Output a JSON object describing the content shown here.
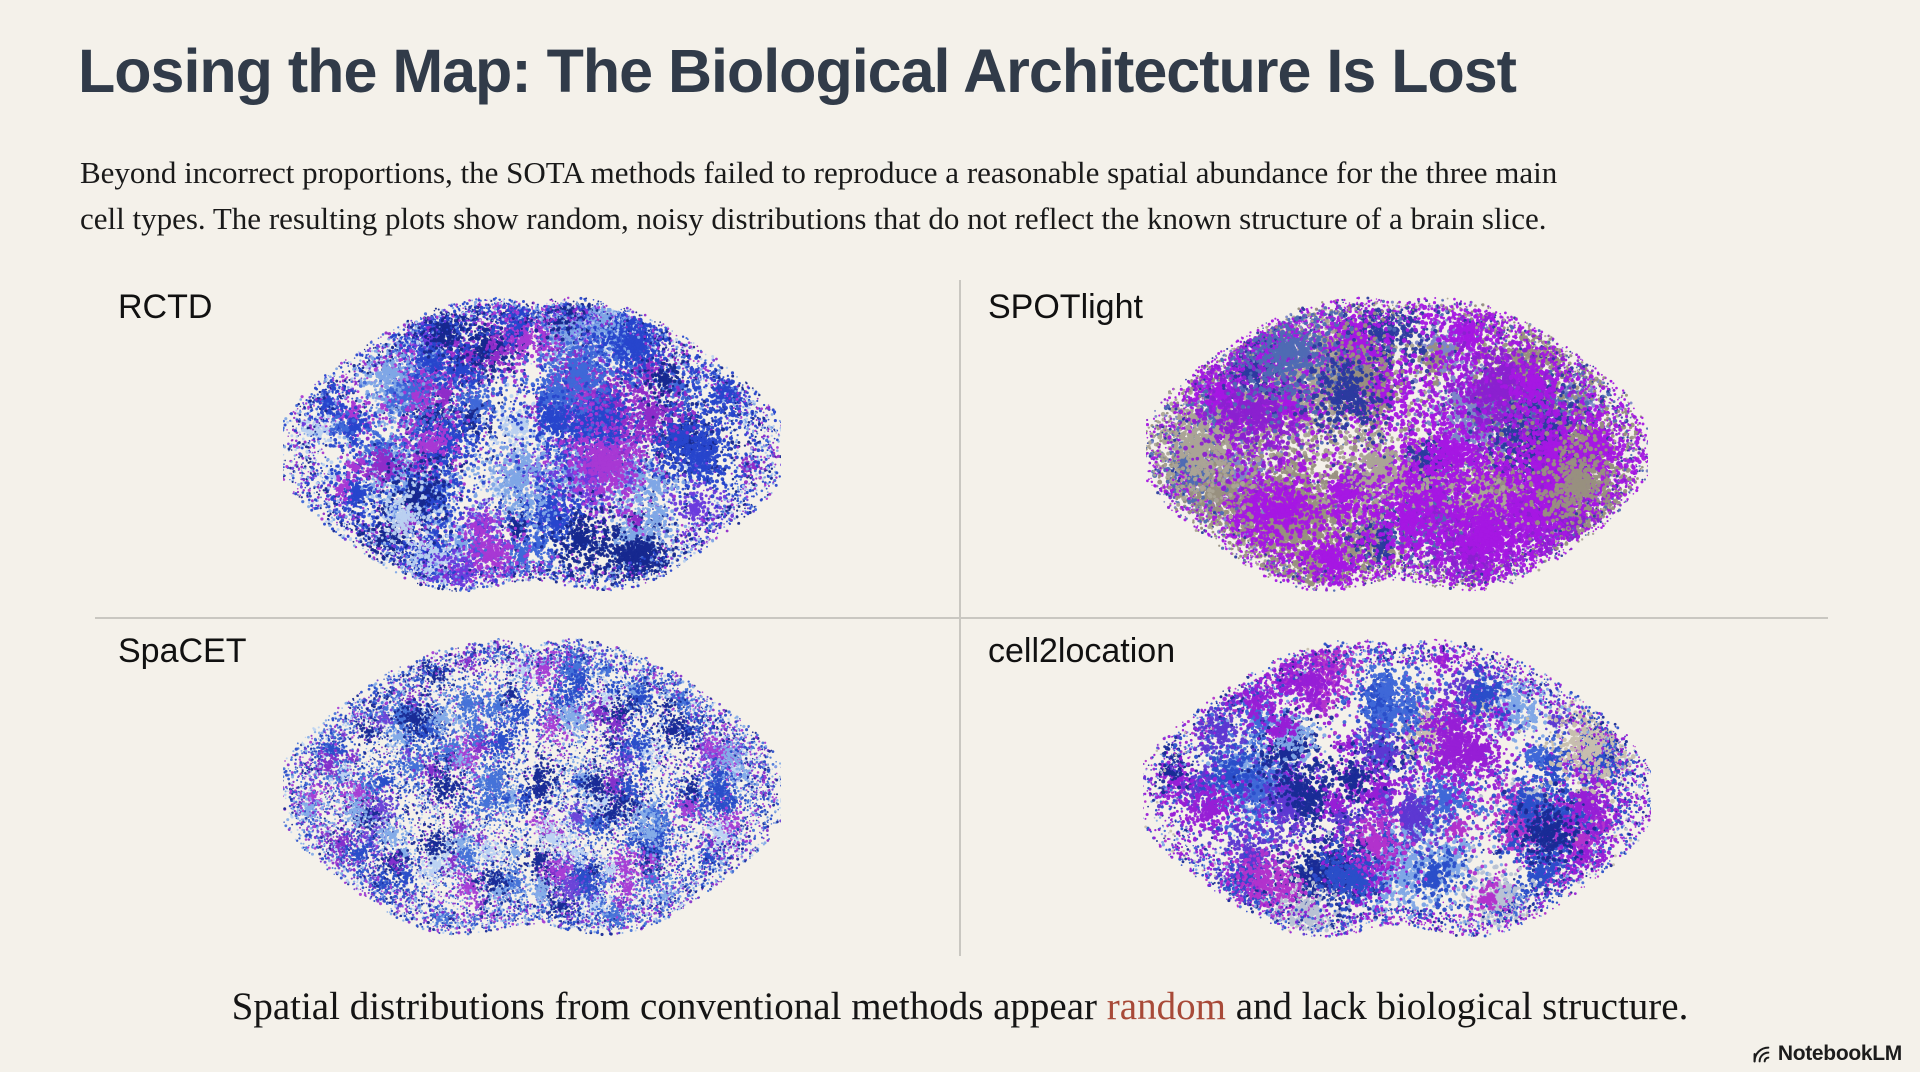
{
  "slide": {
    "title": "Losing the Map: The Biological Architecture Is Lost",
    "subtitle_line1": "Beyond incorrect proportions, the SOTA methods failed to reproduce a reasonable spatial abundance for the three main",
    "subtitle_line2": "cell types. The resulting plots show random, noisy distributions that do not reflect the known structure of a brain slice.",
    "caption_before": "Spatial distributions from conventional methods appear ",
    "caption_highlight": "random",
    "caption_after": " and lack biological structure.",
    "watermark": "NotebookLM",
    "colors": {
      "background": "#f4f1ea",
      "title": "#313b49",
      "body_text": "#1a1a1a",
      "divider": "#c9c7c1",
      "caption_highlight": "#a84a38",
      "watermark": "#1c1c1c"
    }
  },
  "chart_data": {
    "type": "scatter",
    "layout": "2x2-grid",
    "title": "Losing the Map: The Biological Architecture Is Lost",
    "note": "Four coronal mouse-brain spatial cell-type maps; dots form random noisy patches with no biological structure (the slide's point). Panels are generated from the parameters below.",
    "panels": [
      {
        "label": "RCTD",
        "position": "top-left",
        "seed": 11,
        "clusters": 115,
        "sigma": [
          8,
          30
        ],
        "density": 0.55,
        "dotR": [
          1.0,
          2.1
        ],
        "fillDots": 3500,
        "fillR": [
          0.8,
          1.5
        ],
        "edgeDots": 2800,
        "midline": 0.018,
        "shape": {
          "cx": 0.5,
          "cy": 0.5,
          "rx": 0.45,
          "ry": 0.46,
          "lobe2": 0.05,
          "lobe4": 0.035,
          "lobe6": 0.015,
          "bottomNotch": 0.16,
          "bottomNotchW": 0.3,
          "topNotch": 0.05,
          "topNotchW": 0.12
        },
        "palette": [
          {
            "color": "#16288f",
            "w": 2.6
          },
          {
            "color": "#2746cc",
            "w": 3.0
          },
          {
            "color": "#3f68d8",
            "w": 1.6
          },
          {
            "color": "#7fa6e6",
            "w": 2.2
          },
          {
            "color": "#b9d0f0",
            "w": 1.6
          },
          {
            "color": "#8f2cc9",
            "w": 2.0
          },
          {
            "color": "#a838d4",
            "w": 1.4
          },
          {
            "color": "#6b3bdd",
            "w": 1.2
          }
        ]
      },
      {
        "label": "SPOTlight",
        "position": "top-right",
        "seed": 27,
        "clusters": 70,
        "sigma": [
          14,
          45
        ],
        "density": 0.45,
        "dotR": [
          1.3,
          2.6
        ],
        "fillDots": 2500,
        "fillR": [
          0.9,
          1.7
        ],
        "edgeDots": 2500,
        "midline": 0.015,
        "shape": {
          "cx": 0.5,
          "cy": 0.5,
          "rx": 0.45,
          "ry": 0.46,
          "lobe2": 0.05,
          "lobe4": 0.035,
          "lobe6": 0.015,
          "bottomNotch": 0.16,
          "bottomNotchW": 0.3,
          "topNotch": 0.05,
          "topNotchW": 0.12
        },
        "palette": [
          {
            "color": "#a517e3",
            "w": 6.5
          },
          {
            "color": "#8b21d0",
            "w": 1.5
          },
          {
            "color": "#98907f",
            "w": 2.0
          },
          {
            "color": "#aaa496",
            "w": 1.2
          },
          {
            "color": "#4f6ab4",
            "w": 1.2
          },
          {
            "color": "#2b3a9f",
            "w": 1.4
          },
          {
            "color": "#7c86c8",
            "w": 0.8
          }
        ]
      },
      {
        "label": "SpaCET",
        "position": "bottom-left",
        "seed": 33,
        "clusters": 170,
        "sigma": [
          5,
          16
        ],
        "density": 0.8,
        "dotR": [
          0.9,
          1.6
        ],
        "fillDots": 9000,
        "fillR": [
          0.7,
          1.3
        ],
        "edgeDots": 3000,
        "midline": 0.018,
        "shape": {
          "cx": 0.5,
          "cy": 0.5,
          "rx": 0.45,
          "ry": 0.46,
          "lobe2": 0.05,
          "lobe4": 0.035,
          "lobe6": 0.015,
          "bottomNotch": 0.16,
          "bottomNotchW": 0.3,
          "topNotch": 0.05,
          "topNotchW": 0.12
        },
        "palette": [
          {
            "color": "#2a4ec9",
            "w": 3.0
          },
          {
            "color": "#4673d8",
            "w": 2.2
          },
          {
            "color": "#85ace8",
            "w": 2.0
          },
          {
            "color": "#bcd3f2",
            "w": 1.4
          },
          {
            "color": "#192b96",
            "w": 1.8
          },
          {
            "color": "#8432cb",
            "w": 2.0
          },
          {
            "color": "#a63fd6",
            "w": 1.3
          },
          {
            "color": "#6d45d8",
            "w": 0.9
          }
        ]
      },
      {
        "label": "cell2location",
        "position": "bottom-right",
        "seed": 44,
        "clusters": 95,
        "sigma": [
          7,
          28
        ],
        "density": 0.55,
        "dotR": [
          1.1,
          2.4
        ],
        "fillDots": 1500,
        "fillR": [
          0.8,
          1.4
        ],
        "edgeDots": 2600,
        "midline": 0.02,
        "shape": {
          "cx": 0.5,
          "cy": 0.5,
          "rx": 0.45,
          "ry": 0.46,
          "lobe2": 0.05,
          "lobe4": 0.035,
          "lobe6": 0.015,
          "bottomNotch": 0.16,
          "bottomNotchW": 0.3,
          "topNotch": 0.05,
          "topNotchW": 0.12
        },
        "palette": [
          {
            "color": "#971fd6",
            "w": 3.4
          },
          {
            "color": "#2a4ec9",
            "w": 2.4
          },
          {
            "color": "#b233cc",
            "w": 1.5
          },
          {
            "color": "#192b96",
            "w": 1.6
          },
          {
            "color": "#5d38d2",
            "w": 1.1
          },
          {
            "color": "#7fa6e6",
            "w": 1.0
          },
          {
            "color": "#3f68d8",
            "w": 1.0
          },
          {
            "color": "#c7bfae",
            "w": 0.35
          },
          {
            "color": "#b8c2d4",
            "w": 0.3
          }
        ]
      }
    ]
  }
}
